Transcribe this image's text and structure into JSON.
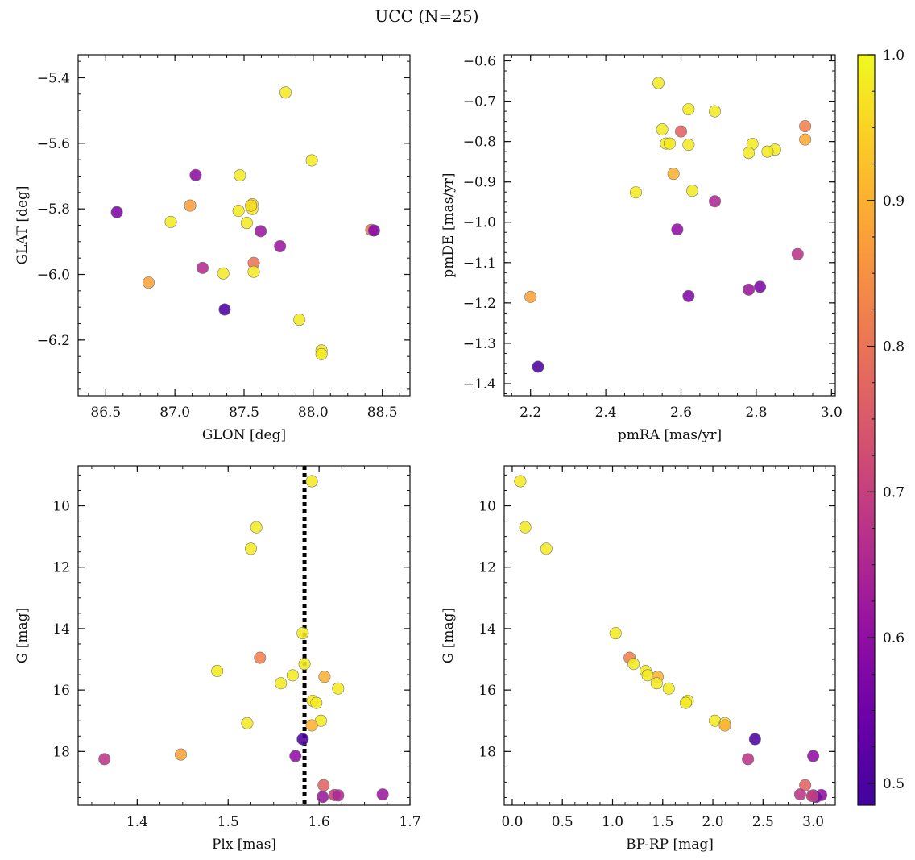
{
  "figure": {
    "suptitle": "UCC (N=25)"
  },
  "colors": {
    "cmap": "plasma",
    "marker_edge": "#777777",
    "reference_line": "#000000"
  },
  "chart_data": [
    {
      "type": "scatter",
      "panel": "top-left",
      "xlabel": "GLON [deg]",
      "ylabel": "GLAT [deg]",
      "xlim": [
        86.3,
        88.7
      ],
      "ylim": [
        -6.37,
        -5.33
      ],
      "xticks": [
        86.5,
        87.0,
        87.5,
        88.0,
        88.5
      ],
      "xticklabels": [
        "86.5",
        "87.0",
        "87.5",
        "88.0",
        "88.5"
      ],
      "yticks": [
        -6.2,
        -6.0,
        -5.8,
        -5.6,
        -5.4
      ],
      "yticklabels": [
        "−6.2",
        "−6.0",
        "−5.8",
        "−5.6",
        "−5.4"
      ],
      "points": [
        {
          "x": 87.8,
          "y": -5.445,
          "c": 0.98
        },
        {
          "x": 87.99,
          "y": -5.652,
          "c": 0.98
        },
        {
          "x": 87.15,
          "y": -5.697,
          "c": 0.6
        },
        {
          "x": 87.47,
          "y": -5.698,
          "c": 0.98
        },
        {
          "x": 87.56,
          "y": -5.786,
          "c": 0.96
        },
        {
          "x": 87.11,
          "y": -5.79,
          "c": 0.87
        },
        {
          "x": 87.56,
          "y": -5.8,
          "c": 0.98
        },
        {
          "x": 87.46,
          "y": -5.806,
          "c": 0.98
        },
        {
          "x": 86.58,
          "y": -5.81,
          "c": 0.57
        },
        {
          "x": 86.97,
          "y": -5.84,
          "c": 0.98
        },
        {
          "x": 87.52,
          "y": -5.843,
          "c": 0.98
        },
        {
          "x": 88.42,
          "y": -5.864,
          "c": 0.8
        },
        {
          "x": 88.44,
          "y": -5.866,
          "c": 0.58
        },
        {
          "x": 87.62,
          "y": -5.868,
          "c": 0.62
        },
        {
          "x": 87.76,
          "y": -5.914,
          "c": 0.62
        },
        {
          "x": 87.57,
          "y": -5.965,
          "c": 0.8
        },
        {
          "x": 87.2,
          "y": -5.98,
          "c": 0.66
        },
        {
          "x": 87.57,
          "y": -5.992,
          "c": 0.98
        },
        {
          "x": 87.35,
          "y": -5.997,
          "c": 0.98
        },
        {
          "x": 86.81,
          "y": -6.025,
          "c": 0.88
        },
        {
          "x": 87.36,
          "y": -6.107,
          "c": 0.5
        },
        {
          "x": 87.9,
          "y": -6.138,
          "c": 0.98
        },
        {
          "x": 88.06,
          "y": -6.232,
          "c": 0.98
        },
        {
          "x": 88.06,
          "y": -6.243,
          "c": 0.98
        },
        {
          "x": 87.55,
          "y": -5.79,
          "c": 0.96
        }
      ]
    },
    {
      "type": "scatter",
      "panel": "top-right",
      "xlabel": "pmRA [mas/yr]",
      "ylabel": "pmDE [mas/yr]",
      "xlim": [
        2.13,
        3.01
      ],
      "ylim": [
        -1.43,
        -0.585
      ],
      "xticks": [
        2.2,
        2.4,
        2.6,
        2.8,
        3.0
      ],
      "xticklabels": [
        "2.2",
        "2.4",
        "2.6",
        "2.8",
        "3.0"
      ],
      "yticks": [
        -1.4,
        -1.3,
        -1.2,
        -1.1,
        -1.0,
        -0.9,
        -0.8,
        -0.7,
        -0.6
      ],
      "yticklabels": [
        "−1.4",
        "−1.3",
        "−1.2",
        "−1.1",
        "−1.0",
        "−0.9",
        "−0.8",
        "−0.7",
        "−0.6"
      ],
      "points": [
        {
          "x": 2.54,
          "y": -0.655,
          "c": 0.98
        },
        {
          "x": 2.62,
          "y": -0.72,
          "c": 0.98
        },
        {
          "x": 2.69,
          "y": -0.725,
          "c": 0.98
        },
        {
          "x": 2.93,
          "y": -0.762,
          "c": 0.82
        },
        {
          "x": 2.55,
          "y": -0.77,
          "c": 0.98
        },
        {
          "x": 2.6,
          "y": -0.775,
          "c": 0.77
        },
        {
          "x": 2.93,
          "y": -0.795,
          "c": 0.89
        },
        {
          "x": 2.56,
          "y": -0.805,
          "c": 0.98
        },
        {
          "x": 2.57,
          "y": -0.805,
          "c": 0.98
        },
        {
          "x": 2.79,
          "y": -0.806,
          "c": 0.98
        },
        {
          "x": 2.62,
          "y": -0.808,
          "c": 0.98
        },
        {
          "x": 2.85,
          "y": -0.82,
          "c": 0.98
        },
        {
          "x": 2.83,
          "y": -0.825,
          "c": 0.98
        },
        {
          "x": 2.78,
          "y": -0.828,
          "c": 0.98
        },
        {
          "x": 2.58,
          "y": -0.88,
          "c": 0.9
        },
        {
          "x": 2.63,
          "y": -0.922,
          "c": 0.98
        },
        {
          "x": 2.48,
          "y": -0.926,
          "c": 0.98
        },
        {
          "x": 2.69,
          "y": -0.948,
          "c": 0.65
        },
        {
          "x": 2.59,
          "y": -1.018,
          "c": 0.6
        },
        {
          "x": 2.91,
          "y": -1.079,
          "c": 0.68
        },
        {
          "x": 2.81,
          "y": -1.16,
          "c": 0.57
        },
        {
          "x": 2.78,
          "y": -1.167,
          "c": 0.62
        },
        {
          "x": 2.62,
          "y": -1.183,
          "c": 0.58
        },
        {
          "x": 2.2,
          "y": -1.185,
          "c": 0.88
        },
        {
          "x": 2.22,
          "y": -1.358,
          "c": 0.5
        }
      ]
    },
    {
      "type": "scatter",
      "panel": "bottom-left",
      "xlabel": "Plx [mas]",
      "ylabel": "G [mag]",
      "xlim": [
        1.335,
        1.7
      ],
      "ylim": [
        19.75,
        8.7
      ],
      "y_inverted": true,
      "vline": 1.584,
      "xticks": [
        1.4,
        1.5,
        1.6,
        1.7
      ],
      "xticklabels": [
        "1.4",
        "1.5",
        "1.6",
        "1.7"
      ],
      "yticks": [
        10,
        12,
        14,
        16,
        18
      ],
      "yticklabels": [
        "10",
        "12",
        "14",
        "16",
        "18"
      ],
      "points": [
        {
          "x": 1.592,
          "y": 9.2,
          "c": 0.98
        },
        {
          "x": 1.531,
          "y": 10.7,
          "c": 0.98
        },
        {
          "x": 1.525,
          "y": 11.4,
          "c": 0.98
        },
        {
          "x": 1.582,
          "y": 14.15,
          "c": 0.98
        },
        {
          "x": 1.535,
          "y": 14.95,
          "c": 0.82
        },
        {
          "x": 1.584,
          "y": 15.15,
          "c": 0.98
        },
        {
          "x": 1.488,
          "y": 15.38,
          "c": 0.98
        },
        {
          "x": 1.571,
          "y": 15.52,
          "c": 0.98
        },
        {
          "x": 1.606,
          "y": 15.57,
          "c": 0.9
        },
        {
          "x": 1.558,
          "y": 15.78,
          "c": 0.98
        },
        {
          "x": 1.621,
          "y": 15.95,
          "c": 0.98
        },
        {
          "x": 1.593,
          "y": 16.35,
          "c": 0.98
        },
        {
          "x": 1.597,
          "y": 16.42,
          "c": 0.98
        },
        {
          "x": 1.602,
          "y": 17.0,
          "c": 0.98
        },
        {
          "x": 1.521,
          "y": 17.08,
          "c": 0.98
        },
        {
          "x": 1.592,
          "y": 17.15,
          "c": 0.9
        },
        {
          "x": 1.582,
          "y": 17.6,
          "c": 0.5
        },
        {
          "x": 1.448,
          "y": 18.1,
          "c": 0.88
        },
        {
          "x": 1.574,
          "y": 18.15,
          "c": 0.6
        },
        {
          "x": 1.364,
          "y": 18.25,
          "c": 0.68
        },
        {
          "x": 1.605,
          "y": 19.1,
          "c": 0.77
        },
        {
          "x": 1.67,
          "y": 19.4,
          "c": 0.62
        },
        {
          "x": 1.617,
          "y": 19.42,
          "c": 0.7
        },
        {
          "x": 1.621,
          "y": 19.43,
          "c": 0.65
        },
        {
          "x": 1.604,
          "y": 19.48,
          "c": 0.62
        }
      ]
    },
    {
      "type": "scatter",
      "panel": "bottom-right",
      "xlabel": "BP-RP [mag]",
      "ylabel": "G [mag]",
      "xlim": [
        -0.08,
        3.22
      ],
      "ylim": [
        19.75,
        8.7
      ],
      "y_inverted": true,
      "xticks": [
        0.0,
        0.5,
        1.0,
        1.5,
        2.0,
        2.5,
        3.0
      ],
      "xticklabels": [
        "0.0",
        "0.5",
        "1.0",
        "1.5",
        "2.0",
        "2.5",
        "3.0"
      ],
      "yticks": [
        10,
        12,
        14,
        16,
        18
      ],
      "yticklabels": [
        "10",
        "12",
        "14",
        "16",
        "18"
      ],
      "points": [
        {
          "x": 0.08,
          "y": 9.2,
          "c": 0.98
        },
        {
          "x": 0.13,
          "y": 10.7,
          "c": 0.98
        },
        {
          "x": 0.34,
          "y": 11.4,
          "c": 0.98
        },
        {
          "x": 1.03,
          "y": 14.15,
          "c": 0.98
        },
        {
          "x": 1.17,
          "y": 14.95,
          "c": 0.82
        },
        {
          "x": 1.21,
          "y": 15.15,
          "c": 0.98
        },
        {
          "x": 1.33,
          "y": 15.38,
          "c": 0.98
        },
        {
          "x": 1.35,
          "y": 15.52,
          "c": 0.98
        },
        {
          "x": 1.45,
          "y": 15.57,
          "c": 0.9
        },
        {
          "x": 1.44,
          "y": 15.78,
          "c": 0.98
        },
        {
          "x": 1.56,
          "y": 15.95,
          "c": 0.98
        },
        {
          "x": 1.75,
          "y": 16.35,
          "c": 0.98
        },
        {
          "x": 1.73,
          "y": 16.42,
          "c": 0.98
        },
        {
          "x": 2.02,
          "y": 17.0,
          "c": 0.98
        },
        {
          "x": 2.12,
          "y": 17.08,
          "c": 0.98
        },
        {
          "x": 2.12,
          "y": 17.15,
          "c": 0.9
        },
        {
          "x": 2.42,
          "y": 17.6,
          "c": 0.5
        },
        {
          "x": 3.0,
          "y": 18.15,
          "c": 0.6
        },
        {
          "x": 2.35,
          "y": 18.25,
          "c": 0.68
        },
        {
          "x": 2.92,
          "y": 19.1,
          "c": 0.77
        },
        {
          "x": 2.87,
          "y": 19.4,
          "c": 0.68
        },
        {
          "x": 3.08,
          "y": 19.42,
          "c": 0.6
        },
        {
          "x": 3.0,
          "y": 19.43,
          "c": 0.62
        },
        {
          "x": 3.03,
          "y": 19.48,
          "c": 0.58
        },
        {
          "x": 2.99,
          "y": 19.45,
          "c": 0.7
        }
      ]
    },
    {
      "type": "colorbar",
      "cmap": "plasma",
      "clim": [
        0.485,
        1.0
      ],
      "ticks": [
        0.5,
        0.6,
        0.7,
        0.8,
        0.9,
        1.0
      ],
      "ticklabels": [
        "0.5",
        "0.6",
        "0.7",
        "0.8",
        "0.9",
        "1.0"
      ]
    }
  ]
}
